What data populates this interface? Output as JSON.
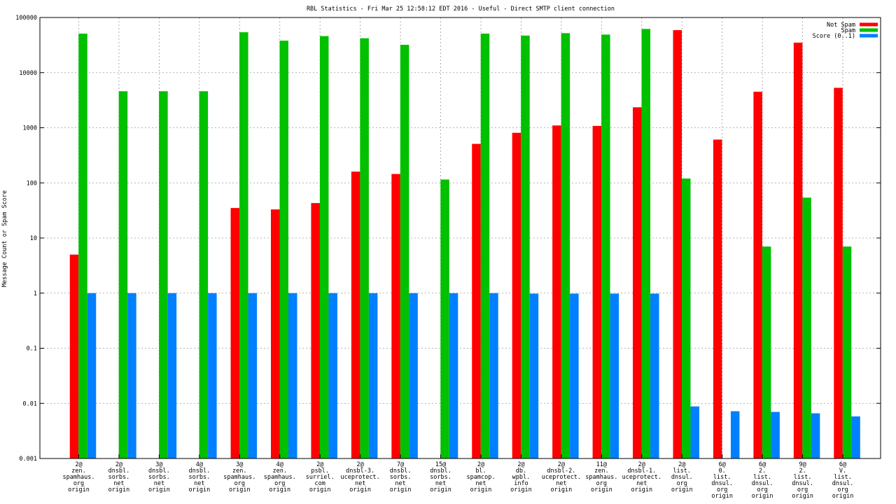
{
  "chart_data": {
    "type": "bar",
    "title": "RBL Statistics - Fri Mar 25 12:58:12 EDT 2016 - Useful - Direct SMTP client connection",
    "xlabel": "",
    "ylabel": "Message Count or Spam Score",
    "yscale": "log",
    "ylim": [
      0.001,
      100000
    ],
    "ytick_labels": [
      "0.001",
      "0.01",
      "0.1",
      "1",
      "10",
      "100",
      "1000",
      "10000",
      "100000"
    ],
    "ytick_values": [
      0.001,
      0.01,
      0.1,
      1,
      10,
      100,
      1000,
      10000,
      100000
    ],
    "grid": true,
    "legend_position": "top-right",
    "categories": [
      [
        "2@",
        "zen.",
        "spamhaus.",
        "org",
        "origin"
      ],
      [
        "2@",
        "dnsbl.",
        "sorbs.",
        "net",
        "origin"
      ],
      [
        "3@",
        "dnsbl.",
        "sorbs.",
        "net",
        "origin"
      ],
      [
        "4@",
        "dnsbl.",
        "sorbs.",
        "net",
        "origin"
      ],
      [
        "3@",
        "zen.",
        "spamhaus.",
        "org",
        "origin"
      ],
      [
        "4@",
        "zen.",
        "spamhaus.",
        "org",
        "origin"
      ],
      [
        "2@",
        "psbl.",
        "surriel.",
        "com",
        "origin"
      ],
      [
        "2@",
        "dnsbl-3.",
        "uceprotect.",
        "net",
        "origin"
      ],
      [
        "7@",
        "dnsbl.",
        "sorbs.",
        "net",
        "origin"
      ],
      [
        "15@",
        "dnsbl.",
        "sorbs.",
        "net",
        "origin"
      ],
      [
        "2@",
        "bl.",
        "spamcop.",
        "net",
        "origin"
      ],
      [
        "2@",
        "db.",
        "wpbl.",
        "info",
        "origin"
      ],
      [
        "2@",
        "dnsbl-2.",
        "uceprotect.",
        "net",
        "origin"
      ],
      [
        "11@",
        "zen.",
        "spamhaus.",
        "org",
        "origin"
      ],
      [
        "2@",
        "dnsbl-1.",
        "uceprotect.",
        "net",
        "origin"
      ],
      [
        "2@",
        "list.",
        "dnsul.",
        "org",
        "origin"
      ],
      [
        "6@",
        "0.",
        "list.",
        "dnsul.",
        "org",
        "origin"
      ],
      [
        "6@",
        "2.",
        "list.",
        "dnsul.",
        "org",
        "origin"
      ],
      [
        "9@",
        "2.",
        "list.",
        "dnsul.",
        "org",
        "origin"
      ],
      [
        "6@",
        "V.",
        "list.",
        "dnsul.",
        "org",
        "origin"
      ]
    ],
    "series": [
      {
        "name": "Not Spam",
        "color": "#ff0000",
        "values": [
          5,
          null,
          null,
          null,
          35,
          33,
          43,
          160,
          145,
          null,
          510,
          810,
          1100,
          1080,
          2350,
          59000,
          610,
          4500,
          35000,
          5300
        ]
      },
      {
        "name": "Spam",
        "color": "#00c000",
        "values": [
          51000,
          4600,
          4600,
          4600,
          54000,
          38000,
          46000,
          42000,
          32000,
          115,
          51000,
          47000,
          52000,
          49000,
          62000,
          120,
          null,
          7,
          54,
          7
        ]
      },
      {
        "name": "Score (0..1)",
        "color": "#0080ff",
        "values": [
          1,
          1,
          1,
          1,
          1,
          1,
          1,
          1,
          1,
          1,
          1,
          0.98,
          0.98,
          0.98,
          0.98,
          0.0088,
          0.0072,
          0.007,
          0.0066,
          0.0058
        ]
      }
    ]
  }
}
